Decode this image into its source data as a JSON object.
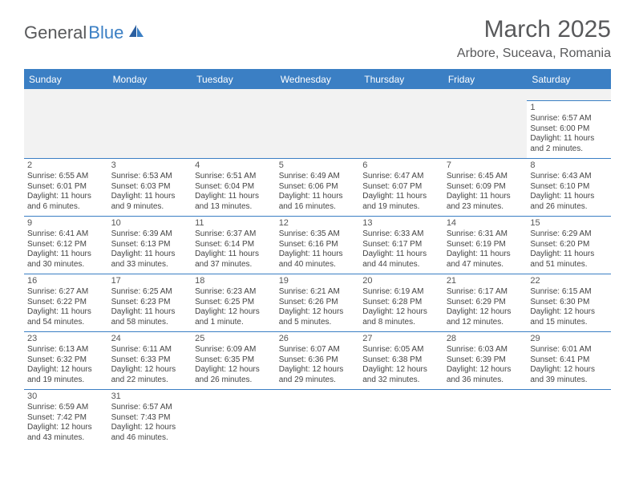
{
  "brand": {
    "part1": "General",
    "part2": "Blue"
  },
  "title": "March 2025",
  "location": "Arbore, Suceava, Romania",
  "colors": {
    "header_bg": "#3b7fc4",
    "text": "#58595b",
    "blank_bg": "#f2f2f2"
  },
  "weekdays": [
    "Sunday",
    "Monday",
    "Tuesday",
    "Wednesday",
    "Thursday",
    "Friday",
    "Saturday"
  ],
  "weeks": [
    [
      null,
      null,
      null,
      null,
      null,
      null,
      {
        "n": "1",
        "sr": "Sunrise: 6:57 AM",
        "ss": "Sunset: 6:00 PM",
        "d1": "Daylight: 11 hours",
        "d2": "and 2 minutes."
      }
    ],
    [
      {
        "n": "2",
        "sr": "Sunrise: 6:55 AM",
        "ss": "Sunset: 6:01 PM",
        "d1": "Daylight: 11 hours",
        "d2": "and 6 minutes."
      },
      {
        "n": "3",
        "sr": "Sunrise: 6:53 AM",
        "ss": "Sunset: 6:03 PM",
        "d1": "Daylight: 11 hours",
        "d2": "and 9 minutes."
      },
      {
        "n": "4",
        "sr": "Sunrise: 6:51 AM",
        "ss": "Sunset: 6:04 PM",
        "d1": "Daylight: 11 hours",
        "d2": "and 13 minutes."
      },
      {
        "n": "5",
        "sr": "Sunrise: 6:49 AM",
        "ss": "Sunset: 6:06 PM",
        "d1": "Daylight: 11 hours",
        "d2": "and 16 minutes."
      },
      {
        "n": "6",
        "sr": "Sunrise: 6:47 AM",
        "ss": "Sunset: 6:07 PM",
        "d1": "Daylight: 11 hours",
        "d2": "and 19 minutes."
      },
      {
        "n": "7",
        "sr": "Sunrise: 6:45 AM",
        "ss": "Sunset: 6:09 PM",
        "d1": "Daylight: 11 hours",
        "d2": "and 23 minutes."
      },
      {
        "n": "8",
        "sr": "Sunrise: 6:43 AM",
        "ss": "Sunset: 6:10 PM",
        "d1": "Daylight: 11 hours",
        "d2": "and 26 minutes."
      }
    ],
    [
      {
        "n": "9",
        "sr": "Sunrise: 6:41 AM",
        "ss": "Sunset: 6:12 PM",
        "d1": "Daylight: 11 hours",
        "d2": "and 30 minutes."
      },
      {
        "n": "10",
        "sr": "Sunrise: 6:39 AM",
        "ss": "Sunset: 6:13 PM",
        "d1": "Daylight: 11 hours",
        "d2": "and 33 minutes."
      },
      {
        "n": "11",
        "sr": "Sunrise: 6:37 AM",
        "ss": "Sunset: 6:14 PM",
        "d1": "Daylight: 11 hours",
        "d2": "and 37 minutes."
      },
      {
        "n": "12",
        "sr": "Sunrise: 6:35 AM",
        "ss": "Sunset: 6:16 PM",
        "d1": "Daylight: 11 hours",
        "d2": "and 40 minutes."
      },
      {
        "n": "13",
        "sr": "Sunrise: 6:33 AM",
        "ss": "Sunset: 6:17 PM",
        "d1": "Daylight: 11 hours",
        "d2": "and 44 minutes."
      },
      {
        "n": "14",
        "sr": "Sunrise: 6:31 AM",
        "ss": "Sunset: 6:19 PM",
        "d1": "Daylight: 11 hours",
        "d2": "and 47 minutes."
      },
      {
        "n": "15",
        "sr": "Sunrise: 6:29 AM",
        "ss": "Sunset: 6:20 PM",
        "d1": "Daylight: 11 hours",
        "d2": "and 51 minutes."
      }
    ],
    [
      {
        "n": "16",
        "sr": "Sunrise: 6:27 AM",
        "ss": "Sunset: 6:22 PM",
        "d1": "Daylight: 11 hours",
        "d2": "and 54 minutes."
      },
      {
        "n": "17",
        "sr": "Sunrise: 6:25 AM",
        "ss": "Sunset: 6:23 PM",
        "d1": "Daylight: 11 hours",
        "d2": "and 58 minutes."
      },
      {
        "n": "18",
        "sr": "Sunrise: 6:23 AM",
        "ss": "Sunset: 6:25 PM",
        "d1": "Daylight: 12 hours",
        "d2": "and 1 minute."
      },
      {
        "n": "19",
        "sr": "Sunrise: 6:21 AM",
        "ss": "Sunset: 6:26 PM",
        "d1": "Daylight: 12 hours",
        "d2": "and 5 minutes."
      },
      {
        "n": "20",
        "sr": "Sunrise: 6:19 AM",
        "ss": "Sunset: 6:28 PM",
        "d1": "Daylight: 12 hours",
        "d2": "and 8 minutes."
      },
      {
        "n": "21",
        "sr": "Sunrise: 6:17 AM",
        "ss": "Sunset: 6:29 PM",
        "d1": "Daylight: 12 hours",
        "d2": "and 12 minutes."
      },
      {
        "n": "22",
        "sr": "Sunrise: 6:15 AM",
        "ss": "Sunset: 6:30 PM",
        "d1": "Daylight: 12 hours",
        "d2": "and 15 minutes."
      }
    ],
    [
      {
        "n": "23",
        "sr": "Sunrise: 6:13 AM",
        "ss": "Sunset: 6:32 PM",
        "d1": "Daylight: 12 hours",
        "d2": "and 19 minutes."
      },
      {
        "n": "24",
        "sr": "Sunrise: 6:11 AM",
        "ss": "Sunset: 6:33 PM",
        "d1": "Daylight: 12 hours",
        "d2": "and 22 minutes."
      },
      {
        "n": "25",
        "sr": "Sunrise: 6:09 AM",
        "ss": "Sunset: 6:35 PM",
        "d1": "Daylight: 12 hours",
        "d2": "and 26 minutes."
      },
      {
        "n": "26",
        "sr": "Sunrise: 6:07 AM",
        "ss": "Sunset: 6:36 PM",
        "d1": "Daylight: 12 hours",
        "d2": "and 29 minutes."
      },
      {
        "n": "27",
        "sr": "Sunrise: 6:05 AM",
        "ss": "Sunset: 6:38 PM",
        "d1": "Daylight: 12 hours",
        "d2": "and 32 minutes."
      },
      {
        "n": "28",
        "sr": "Sunrise: 6:03 AM",
        "ss": "Sunset: 6:39 PM",
        "d1": "Daylight: 12 hours",
        "d2": "and 36 minutes."
      },
      {
        "n": "29",
        "sr": "Sunrise: 6:01 AM",
        "ss": "Sunset: 6:41 PM",
        "d1": "Daylight: 12 hours",
        "d2": "and 39 minutes."
      }
    ],
    [
      {
        "n": "30",
        "sr": "Sunrise: 6:59 AM",
        "ss": "Sunset: 7:42 PM",
        "d1": "Daylight: 12 hours",
        "d2": "and 43 minutes."
      },
      {
        "n": "31",
        "sr": "Sunrise: 6:57 AM",
        "ss": "Sunset: 7:43 PM",
        "d1": "Daylight: 12 hours",
        "d2": "and 46 minutes."
      },
      null,
      null,
      null,
      null,
      null
    ]
  ]
}
